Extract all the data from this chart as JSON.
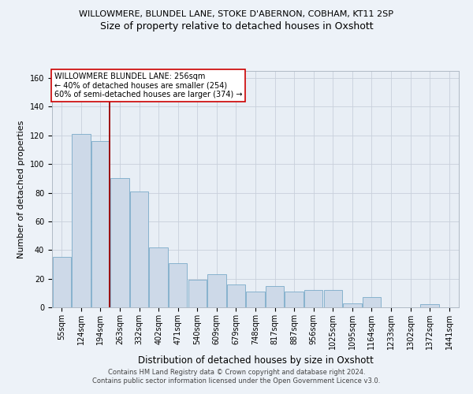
{
  "title": "WILLOWMERE, BLUNDEL LANE, STOKE D'ABERNON, COBHAM, KT11 2SP",
  "subtitle": "Size of property relative to detached houses in Oxshott",
  "xlabel": "Distribution of detached houses by size in Oxshott",
  "ylabel": "Number of detached properties",
  "categories": [
    "55sqm",
    "124sqm",
    "194sqm",
    "263sqm",
    "332sqm",
    "402sqm",
    "471sqm",
    "540sqm",
    "609sqm",
    "679sqm",
    "748sqm",
    "817sqm",
    "887sqm",
    "956sqm",
    "1025sqm",
    "1095sqm",
    "1164sqm",
    "1233sqm",
    "1302sqm",
    "1372sqm",
    "1441sqm"
  ],
  "values": [
    35,
    121,
    116,
    90,
    81,
    42,
    31,
    19,
    23,
    16,
    11,
    15,
    11,
    12,
    12,
    3,
    7,
    0,
    0,
    2,
    0
  ],
  "bar_color": "#cdd9e8",
  "bar_edge_color": "#7aaac8",
  "vline_after_index": 2,
  "vline_color": "#990000",
  "annotation_box_text": "WILLOWMERE BLUNDEL LANE: 256sqm\n← 40% of detached houses are smaller (254)\n60% of semi-detached houses are larger (374) →",
  "annotation_box_color": "#ffffff",
  "annotation_box_edge_color": "#cc0000",
  "ylim": [
    0,
    165
  ],
  "yticks": [
    0,
    20,
    40,
    60,
    80,
    100,
    120,
    140,
    160
  ],
  "grid_color": "#c8d0db",
  "background_color": "#e8eef5",
  "footer_line1": "Contains HM Land Registry data © Crown copyright and database right 2024.",
  "footer_line2": "Contains public sector information licensed under the Open Government Licence v3.0.",
  "title_fontsize": 8,
  "subtitle_fontsize": 9,
  "ylabel_fontsize": 8,
  "xlabel_fontsize": 8.5,
  "tick_fontsize": 7,
  "annot_fontsize": 7,
  "footer_fontsize": 6
}
